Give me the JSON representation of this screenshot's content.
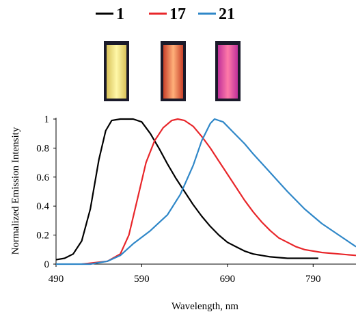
{
  "chart_data": {
    "type": "line",
    "xlabel": "Wavelength, nm",
    "ylabel": "Normalized Emission Intensity",
    "xlim": [
      490,
      840
    ],
    "ylim": [
      0,
      1
    ],
    "xticks": [
      490,
      590,
      690,
      790
    ],
    "yticks": [
      0,
      0.2,
      0.4,
      0.6,
      0.8,
      1
    ],
    "ytick_labels": [
      "0",
      "0.2",
      "0.4",
      "0.6",
      "0.8",
      "1"
    ],
    "grid": false,
    "legend_position": "top",
    "series": [
      {
        "name": "1",
        "color": "#000000",
        "vial_colors": [
          "#d8c25a",
          "#fff7a8"
        ],
        "points": [
          [
            490,
            0.03
          ],
          [
            500,
            0.04
          ],
          [
            510,
            0.07
          ],
          [
            520,
            0.16
          ],
          [
            530,
            0.38
          ],
          [
            540,
            0.72
          ],
          [
            548,
            0.92
          ],
          [
            555,
            0.99
          ],
          [
            565,
            1.0
          ],
          [
            580,
            1.0
          ],
          [
            590,
            0.98
          ],
          [
            600,
            0.9
          ],
          [
            610,
            0.8
          ],
          [
            620,
            0.69
          ],
          [
            630,
            0.59
          ],
          [
            640,
            0.5
          ],
          [
            650,
            0.41
          ],
          [
            660,
            0.33
          ],
          [
            670,
            0.26
          ],
          [
            680,
            0.2
          ],
          [
            690,
            0.15
          ],
          [
            700,
            0.12
          ],
          [
            710,
            0.09
          ],
          [
            720,
            0.07
          ],
          [
            730,
            0.06
          ],
          [
            740,
            0.05
          ],
          [
            760,
            0.04
          ],
          [
            780,
            0.04
          ],
          [
            796,
            0.04
          ]
        ]
      },
      {
        "name": "17",
        "color": "#e8262a",
        "vial_colors": [
          "#c8402a",
          "#ffb07a"
        ],
        "points": [
          [
            520,
            0.0
          ],
          [
            550,
            0.02
          ],
          [
            565,
            0.07
          ],
          [
            575,
            0.2
          ],
          [
            585,
            0.45
          ],
          [
            595,
            0.7
          ],
          [
            605,
            0.85
          ],
          [
            615,
            0.94
          ],
          [
            625,
            0.99
          ],
          [
            632,
            1.0
          ],
          [
            640,
            0.99
          ],
          [
            650,
            0.95
          ],
          [
            660,
            0.88
          ],
          [
            670,
            0.8
          ],
          [
            680,
            0.71
          ],
          [
            690,
            0.62
          ],
          [
            700,
            0.53
          ],
          [
            710,
            0.44
          ],
          [
            720,
            0.36
          ],
          [
            730,
            0.29
          ],
          [
            740,
            0.23
          ],
          [
            750,
            0.18
          ],
          [
            760,
            0.15
          ],
          [
            770,
            0.12
          ],
          [
            780,
            0.1
          ],
          [
            800,
            0.08
          ],
          [
            820,
            0.07
          ],
          [
            840,
            0.06
          ]
        ]
      },
      {
        "name": "21",
        "color": "#2f87c8",
        "vial_colors": [
          "#c0309a",
          "#ff7aa8"
        ],
        "points": [
          [
            490,
            0.0
          ],
          [
            530,
            0.0
          ],
          [
            550,
            0.02
          ],
          [
            565,
            0.06
          ],
          [
            580,
            0.14
          ],
          [
            600,
            0.23
          ],
          [
            620,
            0.34
          ],
          [
            635,
            0.48
          ],
          [
            650,
            0.68
          ],
          [
            660,
            0.85
          ],
          [
            670,
            0.97
          ],
          [
            675,
            1.0
          ],
          [
            685,
            0.98
          ],
          [
            695,
            0.92
          ],
          [
            710,
            0.83
          ],
          [
            720,
            0.76
          ],
          [
            740,
            0.63
          ],
          [
            760,
            0.5
          ],
          [
            780,
            0.38
          ],
          [
            800,
            0.28
          ],
          [
            820,
            0.2
          ],
          [
            840,
            0.12
          ]
        ]
      }
    ]
  }
}
